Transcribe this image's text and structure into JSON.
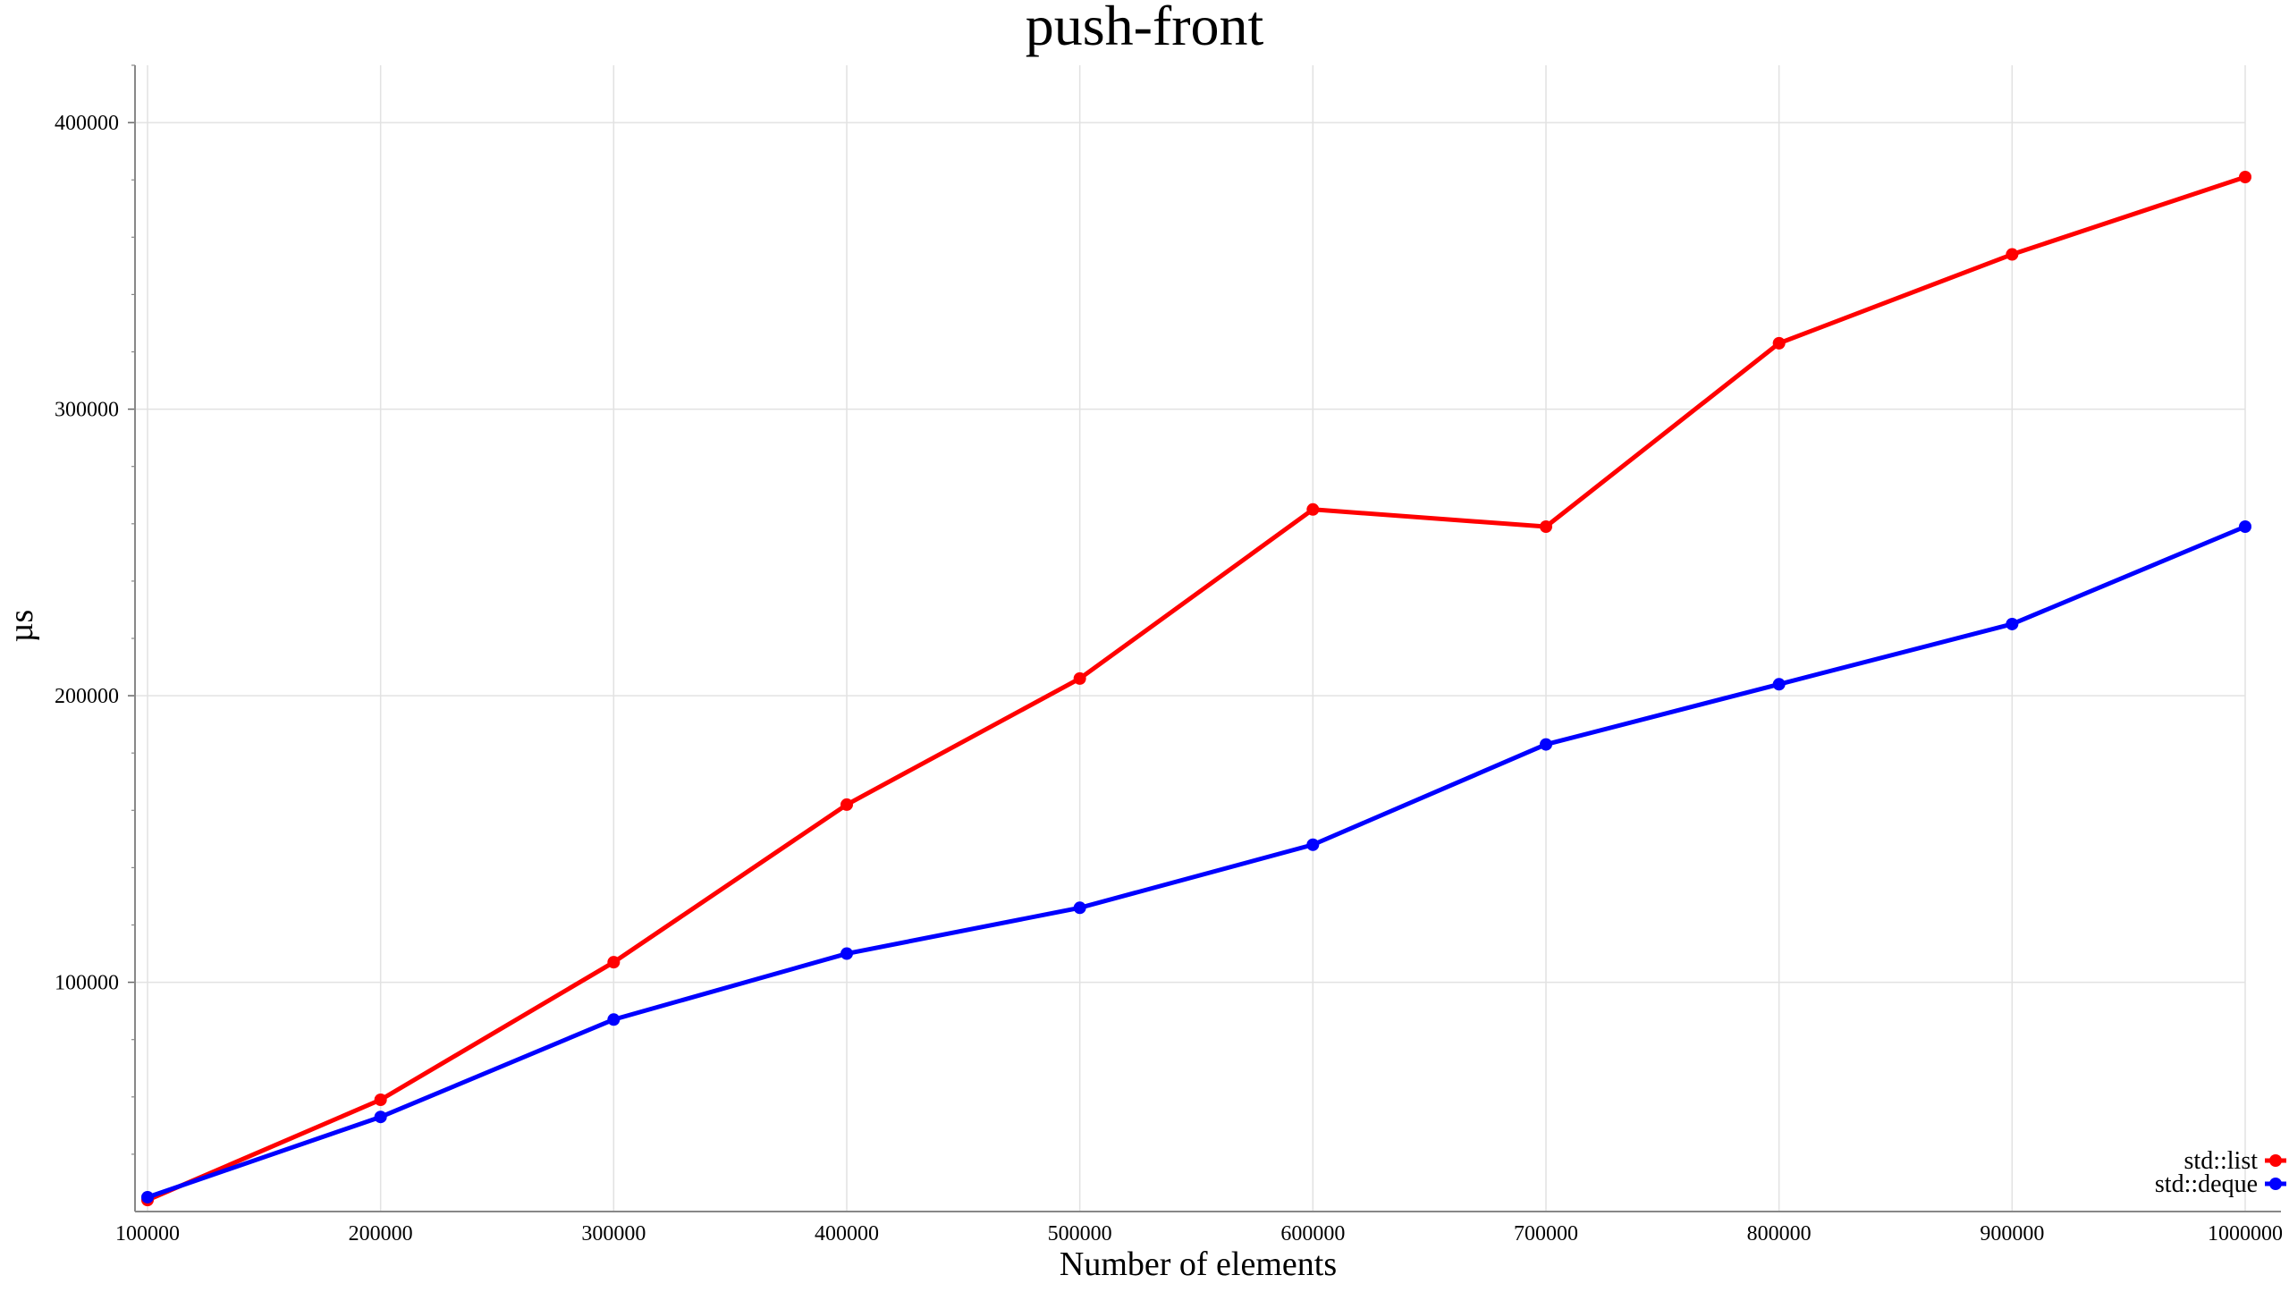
{
  "chart_data": {
    "type": "line",
    "title": "push-front",
    "xlabel": "Number of elements",
    "ylabel": "µs",
    "x": [
      100000,
      200000,
      300000,
      400000,
      500000,
      600000,
      700000,
      800000,
      900000,
      1000000
    ],
    "x_tick_labels": [
      "100000",
      "200000",
      "300000",
      "400000",
      "500000",
      "600000",
      "700000",
      "800000",
      "900000",
      "1000000"
    ],
    "y_ticks": [
      100000,
      200000,
      300000,
      400000
    ],
    "y_tick_labels": [
      "100000",
      "200000",
      "300000",
      "400000"
    ],
    "xlim": [
      100000,
      1000000
    ],
    "ylim": [
      20000,
      420000
    ],
    "grid": true,
    "legend_position": "bottom-right",
    "series": [
      {
        "name": "std::list",
        "color": "#ff0000",
        "values": [
          24000,
          59000,
          107000,
          162000,
          206000,
          265000,
          259000,
          323000,
          354000,
          381000
        ]
      },
      {
        "name": "std::deque",
        "color": "#0000ff",
        "values": [
          25000,
          53000,
          87000,
          110000,
          126000,
          148000,
          183000,
          204000,
          225000,
          259000
        ]
      }
    ]
  }
}
